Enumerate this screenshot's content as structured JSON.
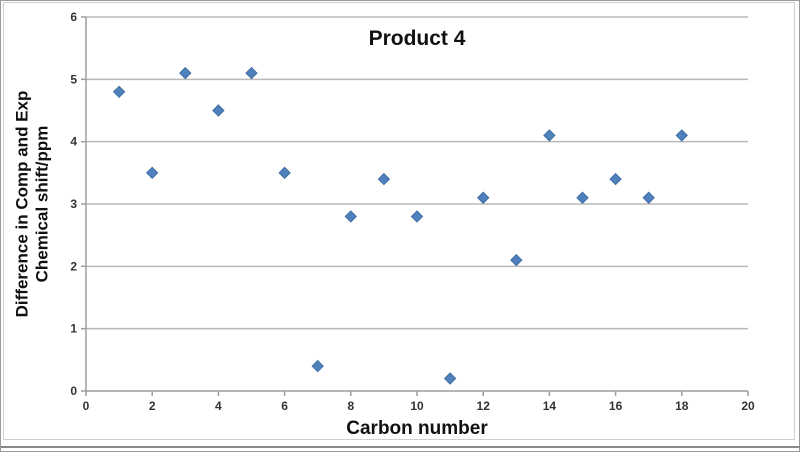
{
  "window": {
    "background": "#ffffff",
    "outer_border_color": "#9b9b9b",
    "chart_border_color": "#cfcfcf",
    "bottom_rule_color": "#8a8a8a"
  },
  "chart_data": {
    "type": "scatter",
    "title": "Product 4",
    "xlabel": "Carbon number",
    "ylabel_line1": "Difference in Comp and Exp",
    "ylabel_line2": "Chemical shift/ppm",
    "xlim": [
      0,
      20
    ],
    "ylim": [
      0,
      6
    ],
    "x_ticks": [
      0,
      2,
      4,
      6,
      8,
      10,
      12,
      14,
      16,
      18,
      20
    ],
    "y_ticks": [
      0,
      1,
      2,
      3,
      4,
      5,
      6
    ],
    "grid": "horizontal",
    "legend_position": "none",
    "gridline_color": "#b9b9b9",
    "axis_color": "#9e9e9e",
    "tick_label_color": "#333333",
    "marker_shape": "diamond",
    "marker_color": "#4F81BD",
    "marker_edge_color": "#3f6da3",
    "points": [
      {
        "x": 1,
        "y": 4.8
      },
      {
        "x": 2,
        "y": 3.5
      },
      {
        "x": 3,
        "y": 5.1
      },
      {
        "x": 4,
        "y": 4.5
      },
      {
        "x": 5,
        "y": 5.1
      },
      {
        "x": 6,
        "y": 3.5
      },
      {
        "x": 7,
        "y": 0.4
      },
      {
        "x": 8,
        "y": 2.8
      },
      {
        "x": 9,
        "y": 3.4
      },
      {
        "x": 10,
        "y": 2.8
      },
      {
        "x": 11,
        "y": 0.2
      },
      {
        "x": 12,
        "y": 3.1
      },
      {
        "x": 13,
        "y": 2.1
      },
      {
        "x": 14,
        "y": 4.1
      },
      {
        "x": 15,
        "y": 3.1
      },
      {
        "x": 16,
        "y": 3.4
      },
      {
        "x": 17,
        "y": 3.1
      },
      {
        "x": 18,
        "y": 4.1
      }
    ]
  }
}
